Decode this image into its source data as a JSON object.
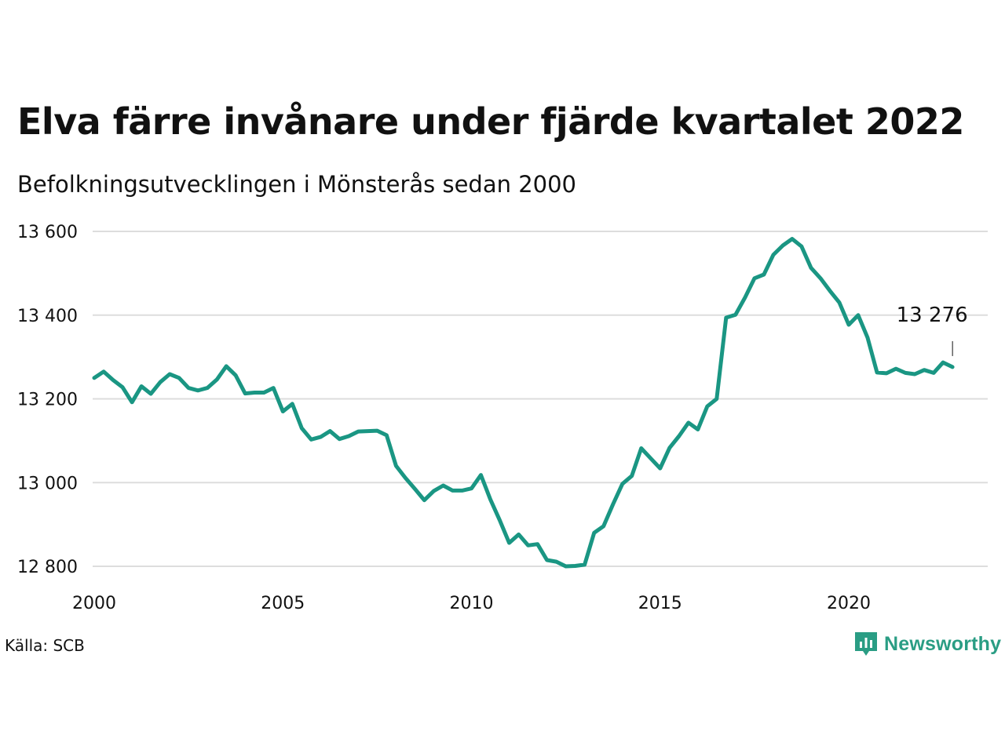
{
  "title": "Elva färre invånare under fjärde kvartalet 2022",
  "subtitle": "Befolkningsutvecklingen i Mönsterås sedan 2000",
  "source": "Källa: SCB",
  "brand": {
    "name": "Newsworthy",
    "color": "#2a9d84"
  },
  "colors": {
    "line": "#1a9683",
    "grid": "#dddddd",
    "text": "#111111"
  },
  "chart_data": {
    "type": "line",
    "xlim": [
      2000,
      2023.5
    ],
    "ylim": [
      12800,
      13620
    ],
    "x_ticks": [
      2000,
      2005,
      2010,
      2015,
      2020
    ],
    "x_tick_labels": [
      "2000",
      "2005",
      "2010",
      "2015",
      "2020"
    ],
    "y_ticks": [
      12800,
      13000,
      13200,
      13400,
      13600
    ],
    "y_tick_labels": [
      "12 800",
      "13 000",
      "13 200",
      "13 400",
      "13 600"
    ],
    "grid": "horizontal",
    "annotation": {
      "text": "13 276",
      "x": 2022.75,
      "y": 13276
    },
    "series": [
      {
        "values": [
          {
            "x": 2000.0,
            "y": 13250
          },
          {
            "x": 2000.25,
            "y": 13265
          },
          {
            "x": 2000.5,
            "y": 13245
          },
          {
            "x": 2000.75,
            "y": 13228
          },
          {
            "x": 2001.0,
            "y": 13192
          },
          {
            "x": 2001.25,
            "y": 13230
          },
          {
            "x": 2001.5,
            "y": 13212
          },
          {
            "x": 2001.75,
            "y": 13240
          },
          {
            "x": 2002.0,
            "y": 13259
          },
          {
            "x": 2002.25,
            "y": 13250
          },
          {
            "x": 2002.5,
            "y": 13226
          },
          {
            "x": 2002.75,
            "y": 13220
          },
          {
            "x": 2003.0,
            "y": 13226
          },
          {
            "x": 2003.25,
            "y": 13246
          },
          {
            "x": 2003.5,
            "y": 13278
          },
          {
            "x": 2003.75,
            "y": 13256
          },
          {
            "x": 2004.0,
            "y": 13213
          },
          {
            "x": 2004.25,
            "y": 13215
          },
          {
            "x": 2004.5,
            "y": 13215
          },
          {
            "x": 2004.75,
            "y": 13226
          },
          {
            "x": 2005.0,
            "y": 13170
          },
          {
            "x": 2005.25,
            "y": 13188
          },
          {
            "x": 2005.5,
            "y": 13130
          },
          {
            "x": 2005.75,
            "y": 13103
          },
          {
            "x": 2006.0,
            "y": 13109
          },
          {
            "x": 2006.25,
            "y": 13123
          },
          {
            "x": 2006.5,
            "y": 13104
          },
          {
            "x": 2006.75,
            "y": 13111
          },
          {
            "x": 2007.0,
            "y": 13122
          },
          {
            "x": 2007.25,
            "y": 13123
          },
          {
            "x": 2007.5,
            "y": 13124
          },
          {
            "x": 2007.75,
            "y": 13113
          },
          {
            "x": 2008.0,
            "y": 13040
          },
          {
            "x": 2008.25,
            "y": 13011
          },
          {
            "x": 2008.5,
            "y": 12985
          },
          {
            "x": 2008.75,
            "y": 12958
          },
          {
            "x": 2009.0,
            "y": 12980
          },
          {
            "x": 2009.25,
            "y": 12993
          },
          {
            "x": 2009.5,
            "y": 12981
          },
          {
            "x": 2009.75,
            "y": 12981
          },
          {
            "x": 2010.0,
            "y": 12986
          },
          {
            "x": 2010.25,
            "y": 13018
          },
          {
            "x": 2010.5,
            "y": 12960
          },
          {
            "x": 2010.75,
            "y": 12910
          },
          {
            "x": 2011.0,
            "y": 12856
          },
          {
            "x": 2011.25,
            "y": 12876
          },
          {
            "x": 2011.5,
            "y": 12850
          },
          {
            "x": 2011.75,
            "y": 12853
          },
          {
            "x": 2012.0,
            "y": 12815
          },
          {
            "x": 2012.25,
            "y": 12811
          },
          {
            "x": 2012.5,
            "y": 12800
          },
          {
            "x": 2012.75,
            "y": 12801
          },
          {
            "x": 2013.0,
            "y": 12804
          },
          {
            "x": 2013.25,
            "y": 12880
          },
          {
            "x": 2013.5,
            "y": 12896
          },
          {
            "x": 2013.75,
            "y": 12948
          },
          {
            "x": 2014.0,
            "y": 12997
          },
          {
            "x": 2014.25,
            "y": 13016
          },
          {
            "x": 2014.5,
            "y": 13082
          },
          {
            "x": 2014.75,
            "y": 13058
          },
          {
            "x": 2015.0,
            "y": 13034
          },
          {
            "x": 2015.25,
            "y": 13083
          },
          {
            "x": 2015.5,
            "y": 13111
          },
          {
            "x": 2015.75,
            "y": 13143
          },
          {
            "x": 2016.0,
            "y": 13127
          },
          {
            "x": 2016.25,
            "y": 13182
          },
          {
            "x": 2016.5,
            "y": 13200
          },
          {
            "x": 2016.75,
            "y": 13394
          },
          {
            "x": 2017.0,
            "y": 13401
          },
          {
            "x": 2017.25,
            "y": 13442
          },
          {
            "x": 2017.5,
            "y": 13488
          },
          {
            "x": 2017.75,
            "y": 13497
          },
          {
            "x": 2018.0,
            "y": 13544
          },
          {
            "x": 2018.25,
            "y": 13566
          },
          {
            "x": 2018.5,
            "y": 13582
          },
          {
            "x": 2018.75,
            "y": 13564
          },
          {
            "x": 2019.0,
            "y": 13513
          },
          {
            "x": 2019.25,
            "y": 13488
          },
          {
            "x": 2019.5,
            "y": 13458
          },
          {
            "x": 2019.75,
            "y": 13430
          },
          {
            "x": 2020.0,
            "y": 13377
          },
          {
            "x": 2020.25,
            "y": 13400
          },
          {
            "x": 2020.5,
            "y": 13346
          },
          {
            "x": 2020.75,
            "y": 13263
          },
          {
            "x": 2021.0,
            "y": 13261
          },
          {
            "x": 2021.25,
            "y": 13272
          },
          {
            "x": 2021.5,
            "y": 13262
          },
          {
            "x": 2021.75,
            "y": 13259
          },
          {
            "x": 2022.0,
            "y": 13269
          },
          {
            "x": 2022.25,
            "y": 13262
          },
          {
            "x": 2022.5,
            "y": 13287
          },
          {
            "x": 2022.75,
            "y": 13276
          }
        ]
      }
    ]
  }
}
